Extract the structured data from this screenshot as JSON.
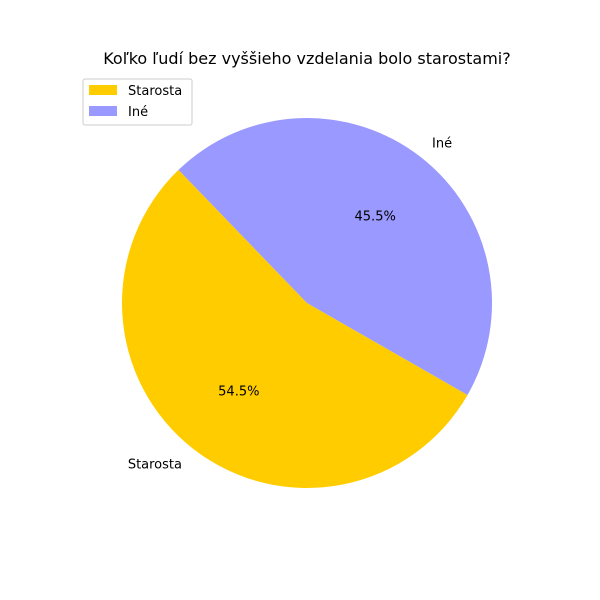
{
  "chart_data": {
    "type": "pie",
    "title": "Koľko ľudí bez vyššieho vzdelania bolo starostami?",
    "categories": [
      "Starosta",
      "Iné"
    ],
    "values": [
      54.5,
      45.5
    ],
    "value_labels": [
      "54.5%",
      "45.5%"
    ],
    "colors": [
      "#ffcc00",
      "#9999ff"
    ],
    "legend": {
      "placement": "top-left",
      "entries": [
        "Starosta",
        "Iné"
      ]
    }
  }
}
